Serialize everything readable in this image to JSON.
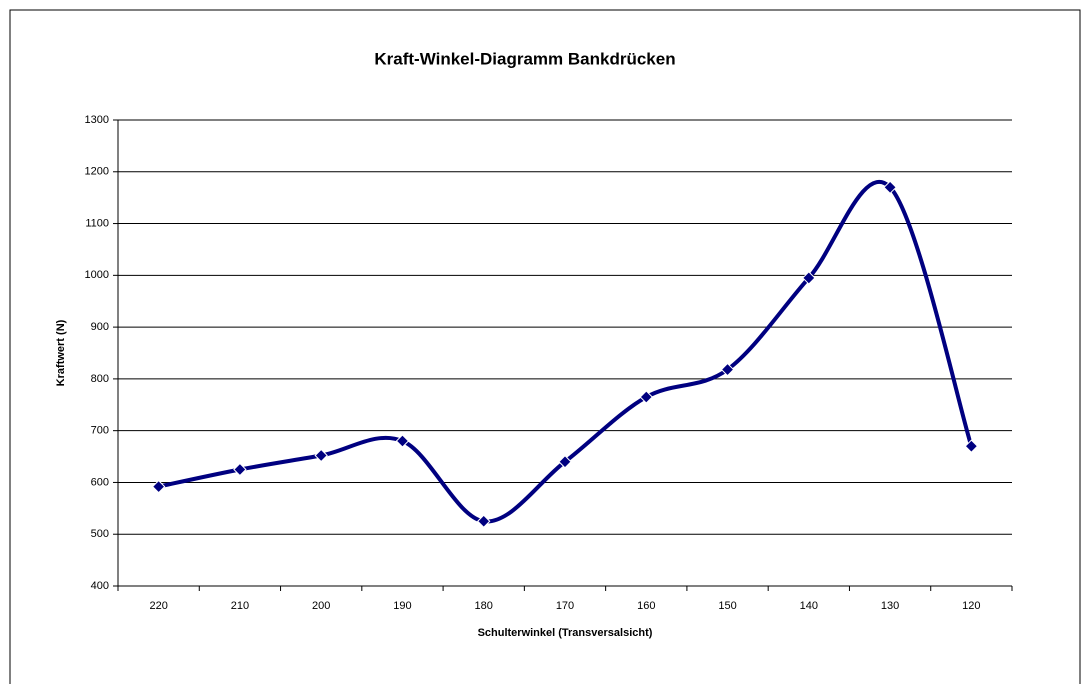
{
  "chart_data": {
    "type": "line",
    "title": "Kraft-Winkel-Diagramm Bankdrücken",
    "x_label": "Schulterwinkel (Transversalsicht)",
    "y_label": "Kraftwert (N)",
    "categories": [
      "220",
      "210",
      "200",
      "190",
      "180",
      "170",
      "160",
      "150",
      "140",
      "130",
      "120"
    ],
    "values": [
      592,
      625,
      652,
      680,
      525,
      640,
      765,
      818,
      995,
      1170,
      670
    ],
    "color": "#000080",
    "smooth": true,
    "marker": "diamond",
    "ylim": [
      400,
      1300
    ],
    "yticks": [
      400,
      500,
      600,
      700,
      800,
      900,
      1000,
      1100,
      1200,
      1300
    ],
    "grid": true
  }
}
